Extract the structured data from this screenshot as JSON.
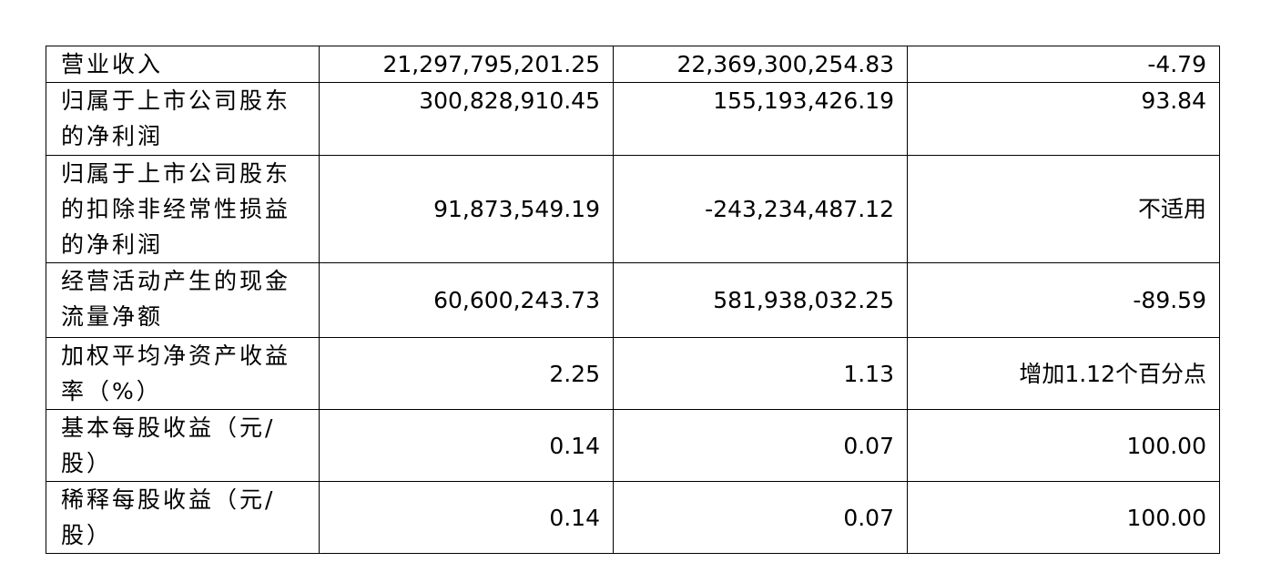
{
  "table": {
    "rows": [
      [
        "营业收入",
        "21,297,795,201.25",
        "22,369,300,254.83",
        "-4.79"
      ],
      [
        "归属于上市公司股东的净利润",
        "300,828,910.45",
        "155,193,426.19",
        "93.84"
      ],
      [
        "归属于上市公司股东的扣除非经常性损益的净利润",
        "91,873,549.19",
        "-243,234,487.12",
        "不适用"
      ],
      [
        "经营活动产生的现金流量净额",
        "60,600,243.73",
        "581,938,032.25",
        "-89.59"
      ],
      [
        "加权平均净资产收益率（%）",
        "2.25",
        "1.13",
        "增加1.12个百分点"
      ],
      [
        "基本每股收益（元/股）",
        "0.14",
        "0.07",
        "100.00"
      ],
      [
        "稀释每股收益（元/股）",
        "0.14",
        "0.07",
        "100.00"
      ]
    ]
  }
}
